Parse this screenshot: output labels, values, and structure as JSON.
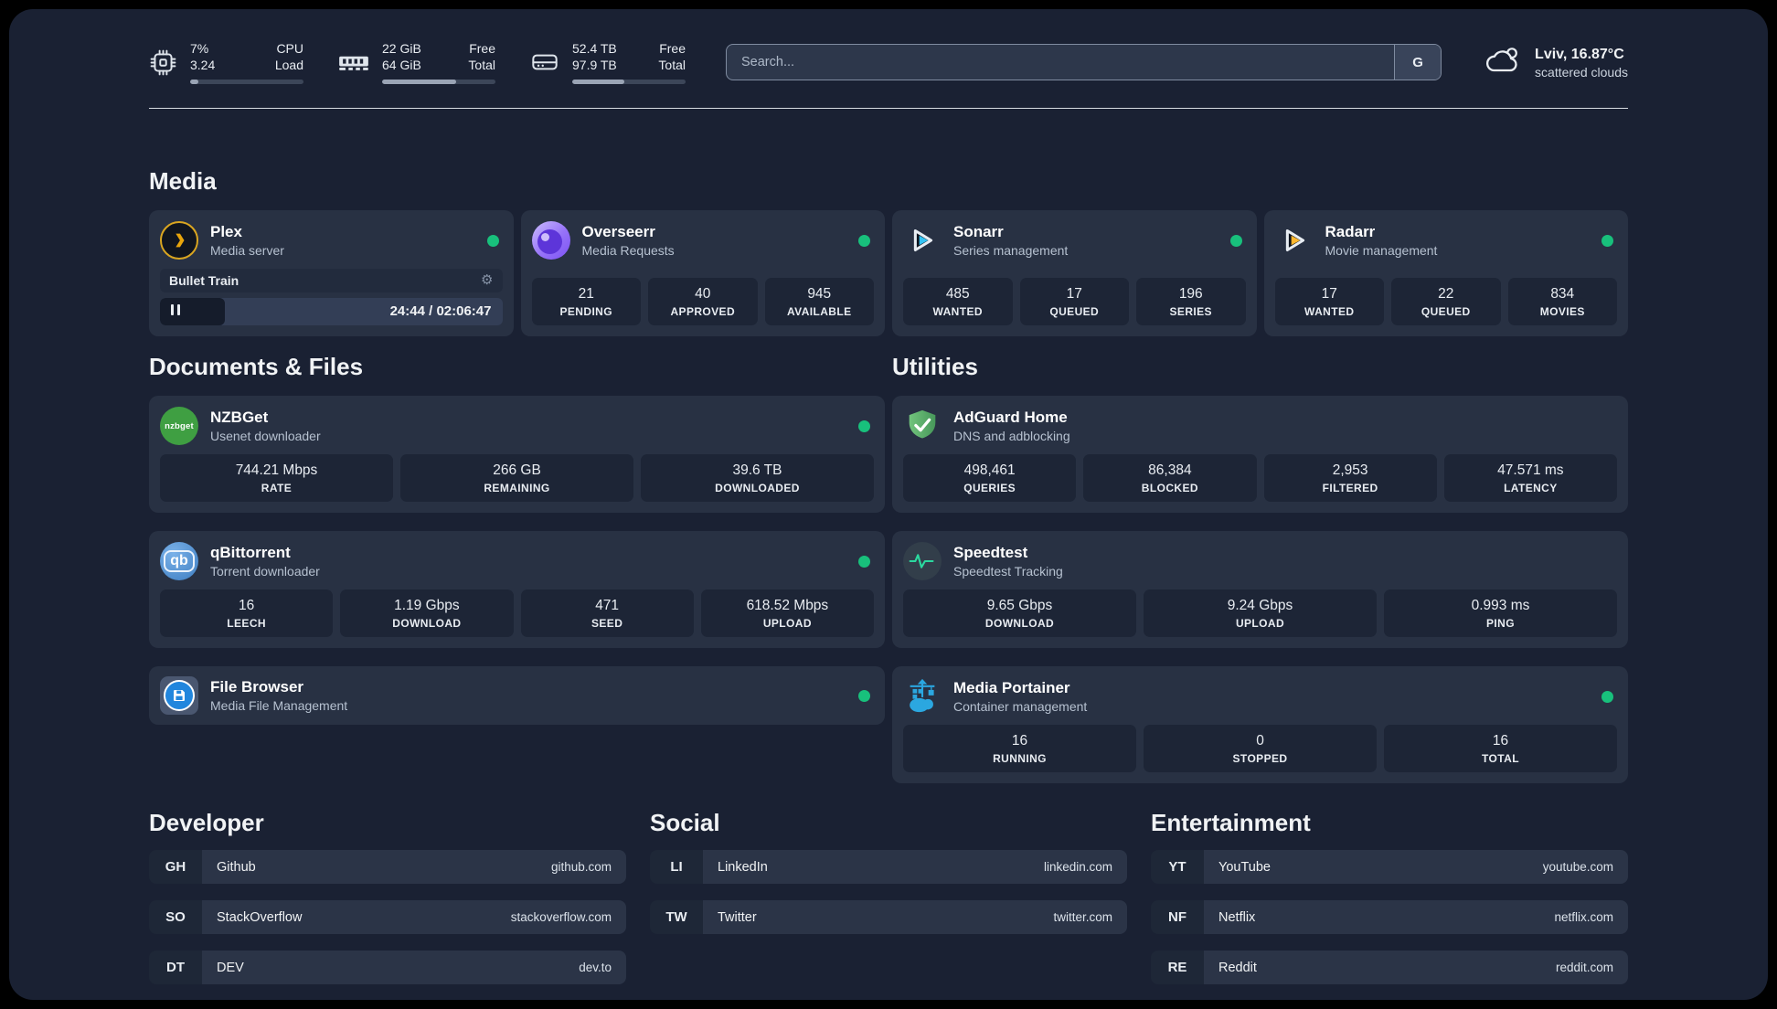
{
  "topbar": {
    "cpu": {
      "percent": "7%",
      "load": "3.24",
      "label1": "CPU",
      "label2": "Load",
      "progress": 7
    },
    "ram": {
      "free": "22 GiB",
      "total": "64 GiB",
      "label1": "Free",
      "label2": "Total",
      "progress": 65
    },
    "disk": {
      "free": "52.4 TB",
      "total": "97.9 TB",
      "label1": "Free",
      "label2": "Total",
      "progress": 46
    },
    "search": {
      "placeholder": "Search...",
      "engine_button": "G"
    },
    "weather": {
      "location": "Lviv, 16.87°C",
      "condition": "scattered clouds"
    }
  },
  "media": {
    "section_title": "Media",
    "plex": {
      "title": "Plex",
      "subtitle": "Media server",
      "now_playing": "Bullet Train",
      "gear": "⚙",
      "time": "24:44 / 02:06:47",
      "progress": 19
    },
    "overseerr": {
      "title": "Overseerr",
      "subtitle": "Media Requests",
      "stats": [
        {
          "value": "21",
          "label": "PENDING"
        },
        {
          "value": "40",
          "label": "APPROVED"
        },
        {
          "value": "945",
          "label": "AVAILABLE"
        }
      ]
    },
    "sonarr": {
      "title": "Sonarr",
      "subtitle": "Series management",
      "stats": [
        {
          "value": "485",
          "label": "WANTED"
        },
        {
          "value": "17",
          "label": "QUEUED"
        },
        {
          "value": "196",
          "label": "SERIES"
        }
      ]
    },
    "radarr": {
      "title": "Radarr",
      "subtitle": "Movie management",
      "stats": [
        {
          "value": "17",
          "label": "WANTED"
        },
        {
          "value": "22",
          "label": "QUEUED"
        },
        {
          "value": "834",
          "label": "MOVIES"
        }
      ]
    }
  },
  "documents": {
    "section_title": "Documents & Files",
    "nzbget": {
      "title": "NZBGet",
      "subtitle": "Usenet downloader",
      "icon_text": "nzbget",
      "stats": [
        {
          "value": "744.21 Mbps",
          "label": "RATE"
        },
        {
          "value": "266 GB",
          "label": "REMAINING"
        },
        {
          "value": "39.6 TB",
          "label": "DOWNLOADED"
        }
      ]
    },
    "qbittorrent": {
      "title": "qBittorrent",
      "subtitle": "Torrent downloader",
      "icon_text": "qb",
      "stats": [
        {
          "value": "16",
          "label": "LEECH"
        },
        {
          "value": "1.19 Gbps",
          "label": "DOWNLOAD"
        },
        {
          "value": "471",
          "label": "SEED"
        },
        {
          "value": "618.52 Mbps",
          "label": "UPLOAD"
        }
      ]
    },
    "filebrowser": {
      "title": "File Browser",
      "subtitle": "Media File Management"
    }
  },
  "utilities": {
    "section_title": "Utilities",
    "adguard": {
      "title": "AdGuard Home",
      "subtitle": "DNS and adblocking",
      "stats": [
        {
          "value": "498,461",
          "label": "QUERIES"
        },
        {
          "value": "86,384",
          "label": "BLOCKED"
        },
        {
          "value": "2,953",
          "label": "FILTERED"
        },
        {
          "value": "47.571 ms",
          "label": "LATENCY"
        }
      ]
    },
    "speedtest": {
      "title": "Speedtest",
      "subtitle": "Speedtest Tracking",
      "stats": [
        {
          "value": "9.65 Gbps",
          "label": "DOWNLOAD"
        },
        {
          "value": "9.24 Gbps",
          "label": "UPLOAD"
        },
        {
          "value": "0.993 ms",
          "label": "PING"
        }
      ]
    },
    "portainer": {
      "title": "Media Portainer",
      "subtitle": "Container management",
      "stats": [
        {
          "value": "16",
          "label": "RUNNING"
        },
        {
          "value": "0",
          "label": "STOPPED"
        },
        {
          "value": "16",
          "label": "TOTAL"
        }
      ]
    }
  },
  "links": {
    "developer": {
      "section_title": "Developer",
      "items": [
        {
          "abbr": "GH",
          "name": "Github",
          "url": "github.com"
        },
        {
          "abbr": "SO",
          "name": "StackOverflow",
          "url": "stackoverflow.com"
        },
        {
          "abbr": "DT",
          "name": "DEV",
          "url": "dev.to"
        }
      ]
    },
    "social": {
      "section_title": "Social",
      "items": [
        {
          "abbr": "LI",
          "name": "LinkedIn",
          "url": "linkedin.com"
        },
        {
          "abbr": "TW",
          "name": "Twitter",
          "url": "twitter.com"
        }
      ]
    },
    "entertainment": {
      "section_title": "Entertainment",
      "items": [
        {
          "abbr": "YT",
          "name": "YouTube",
          "url": "youtube.com"
        },
        {
          "abbr": "NF",
          "name": "Netflix",
          "url": "netflix.com"
        },
        {
          "abbr": "RE",
          "name": "Reddit",
          "url": "reddit.com"
        }
      ]
    }
  },
  "colors": {
    "status_online": "#18c07c",
    "plex_accent": "#e8a50c"
  }
}
